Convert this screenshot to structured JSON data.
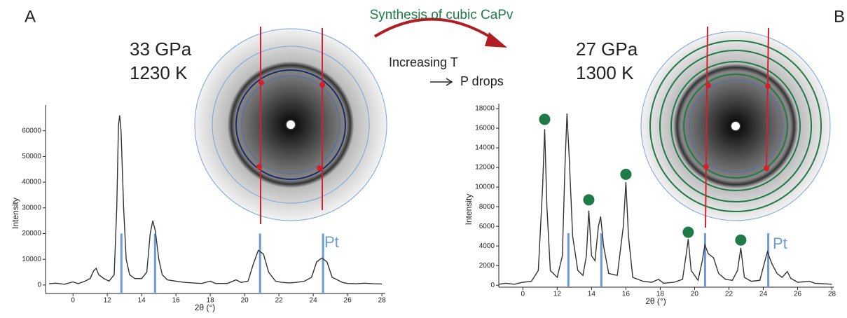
{
  "annotations": {
    "synthesis": "Synthesis of cubic CaPv",
    "step1": "Increasing T",
    "step2": "P drops"
  },
  "chart_data": [
    {
      "type": "line",
      "panel_label": "A",
      "conditions": [
        "33 GPa",
        "1230 K"
      ],
      "xlabel": "2θ (°)",
      "ylabel": "Intensity",
      "xlim": [
        8.4,
        28.2
      ],
      "ylim": [
        -3300,
        70000
      ],
      "xticks": [
        {
          "value": 10,
          "label": "0"
        },
        12,
        14,
        16,
        18,
        20,
        22,
        24,
        26,
        28
      ],
      "yticks": [
        0,
        10000,
        20000,
        30000,
        40000,
        50000,
        60000
      ],
      "x": [
        8.6,
        9.0,
        9.5,
        10.0,
        10.3,
        10.7,
        11.0,
        11.2,
        11.35,
        11.5,
        11.8,
        12.1,
        12.4,
        12.55,
        12.65,
        12.72,
        12.8,
        12.95,
        13.1,
        13.3,
        13.6,
        14.0,
        14.3,
        14.5,
        14.65,
        14.8,
        15.0,
        15.2,
        15.5,
        16.0,
        16.5,
        17.0,
        17.5,
        18.0,
        18.3,
        19.0,
        19.5,
        19.8,
        20.2,
        20.5,
        20.8,
        21.1,
        21.4,
        21.8,
        22.2,
        22.6,
        23.0,
        23.5,
        23.9,
        24.2,
        24.5,
        24.8,
        25.1,
        25.4,
        25.7,
        26.0,
        26.5,
        27.0,
        27.5,
        28.0
      ],
      "series": [
        {
          "color": "#333333",
          "values": [
            500,
            700,
            300,
            1200,
            500,
            1500,
            2500,
            5500,
            6500,
            4000,
            2500,
            1500,
            4000,
            30000,
            62000,
            66000,
            60000,
            30000,
            10000,
            4000,
            2500,
            2500,
            5000,
            20000,
            25000,
            21000,
            10000,
            4000,
            2000,
            1500,
            1000,
            800,
            600,
            1500,
            600,
            600,
            2000,
            1000,
            1500,
            8000,
            13500,
            12000,
            5000,
            1500,
            1000,
            800,
            1000,
            1500,
            3000,
            9000,
            10500,
            9000,
            3000,
            2000,
            1000,
            600,
            500,
            700,
            500,
            400
          ]
        }
      ],
      "reference": {
        "label": "Pt",
        "color": "#6b9bd6",
        "x": [
          12.82,
          14.78,
          20.9,
          24.57
        ],
        "values": [
          20000,
          20000,
          20000,
          20000
        ]
      }
    },
    {
      "type": "line",
      "panel_label": "B",
      "conditions": [
        "27 GPa",
        "1300 K"
      ],
      "xlabel": "2θ (°)",
      "ylabel": "Intensity",
      "xlim": [
        8.6,
        28.1
      ],
      "ylim": [
        -200,
        18500
      ],
      "xticks": [
        {
          "value": 10,
          "label": "0"
        },
        12,
        14,
        16,
        18,
        20,
        22,
        24,
        26,
        28
      ],
      "yticks": [
        0,
        2000,
        4000,
        6000,
        8000,
        10000,
        12000,
        14000,
        16000,
        18000
      ],
      "x": [
        8.6,
        9.0,
        9.5,
        10.0,
        10.5,
        10.9,
        11.15,
        11.27,
        11.4,
        11.6,
        12.0,
        12.3,
        12.45,
        12.57,
        12.7,
        12.9,
        13.2,
        13.5,
        13.7,
        13.84,
        14.0,
        14.2,
        14.4,
        14.53,
        14.7,
        15.0,
        15.5,
        15.85,
        16.0,
        16.15,
        16.4,
        17.0,
        17.5,
        17.9,
        18.2,
        18.8,
        19.3,
        19.5,
        19.63,
        19.8,
        20.2,
        20.45,
        20.6,
        20.8,
        21.1,
        21.4,
        21.8,
        22.2,
        22.5,
        22.69,
        22.9,
        23.3,
        23.8,
        24.1,
        24.24,
        24.5,
        24.8,
        25.1,
        25.4,
        25.6,
        26.0,
        26.7,
        27.0,
        27.5,
        28.0
      ],
      "series": [
        {
          "color": "#333333",
          "values": [
            100,
            200,
            100,
            300,
            400,
            1500,
            10000,
            15900,
            8000,
            1500,
            800,
            3000,
            12000,
            17500,
            13000,
            5000,
            1500,
            1000,
            3000,
            7600,
            3000,
            2500,
            6000,
            7000,
            4000,
            1200,
            1000,
            6000,
            10500,
            5000,
            800,
            400,
            300,
            600,
            200,
            300,
            600,
            3000,
            4700,
            1500,
            500,
            2500,
            4100,
            3200,
            2800,
            1200,
            600,
            500,
            1500,
            3800,
            800,
            400,
            500,
            2500,
            3400,
            2200,
            1200,
            800,
            1400,
            700,
            300,
            400,
            200,
            150,
            100
          ]
        }
      ],
      "reference": {
        "label": "Pt",
        "color": "#6b9bd6",
        "x": [
          12.65,
          14.57,
          20.61,
          24.29
        ],
        "values": [
          5300,
          5300,
          5300,
          5300
        ]
      },
      "dots": {
        "color": "#1e7a46",
        "x": [
          11.27,
          13.84,
          16.0,
          19.63,
          22.69
        ],
        "values": [
          16900,
          8700,
          11300,
          5400,
          4600
        ]
      }
    }
  ]
}
